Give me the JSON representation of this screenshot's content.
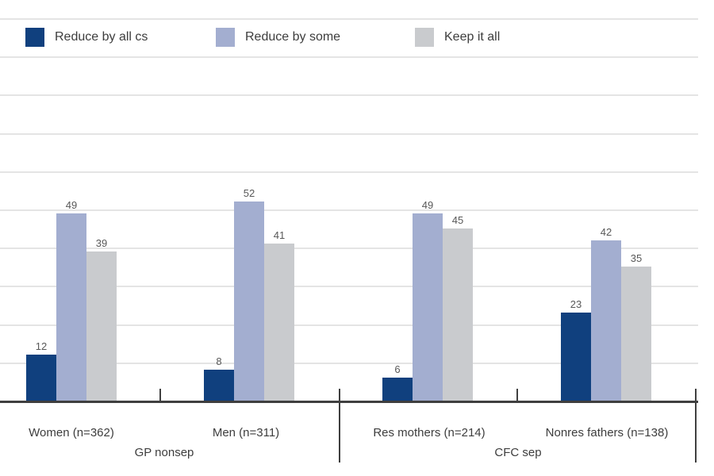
{
  "chart_data": {
    "type": "bar",
    "title": "",
    "categories": [
      "Women (n=362)",
      "Men (n=311)",
      "Res mothers (n=214)",
      "Nonres fathers (n=138)"
    ],
    "group_labels": [
      "GP nonsep",
      "CFC sep"
    ],
    "categories_per_group": 2,
    "series": [
      {
        "name": "Reduce by all cs",
        "color": "#10407e",
        "values": [
          12,
          8,
          6,
          23
        ]
      },
      {
        "name": "Reduce by some",
        "color": "#a3aed0",
        "values": [
          49,
          52,
          49,
          42
        ]
      },
      {
        "name": "Keep it all",
        "color": "#c9cbce",
        "values": [
          39,
          41,
          45,
          35
        ]
      }
    ],
    "ylim": [
      0,
      100
    ],
    "gridline_interval": 10,
    "grid": true,
    "y_axis_labels_visible": false,
    "value_labels_visible": true,
    "legend_position": "top",
    "colors": {
      "gridline": "#e4e4e4",
      "axis": "#3f3f3f",
      "label_text": "#3d3d3d",
      "value_text": "#585858"
    }
  }
}
